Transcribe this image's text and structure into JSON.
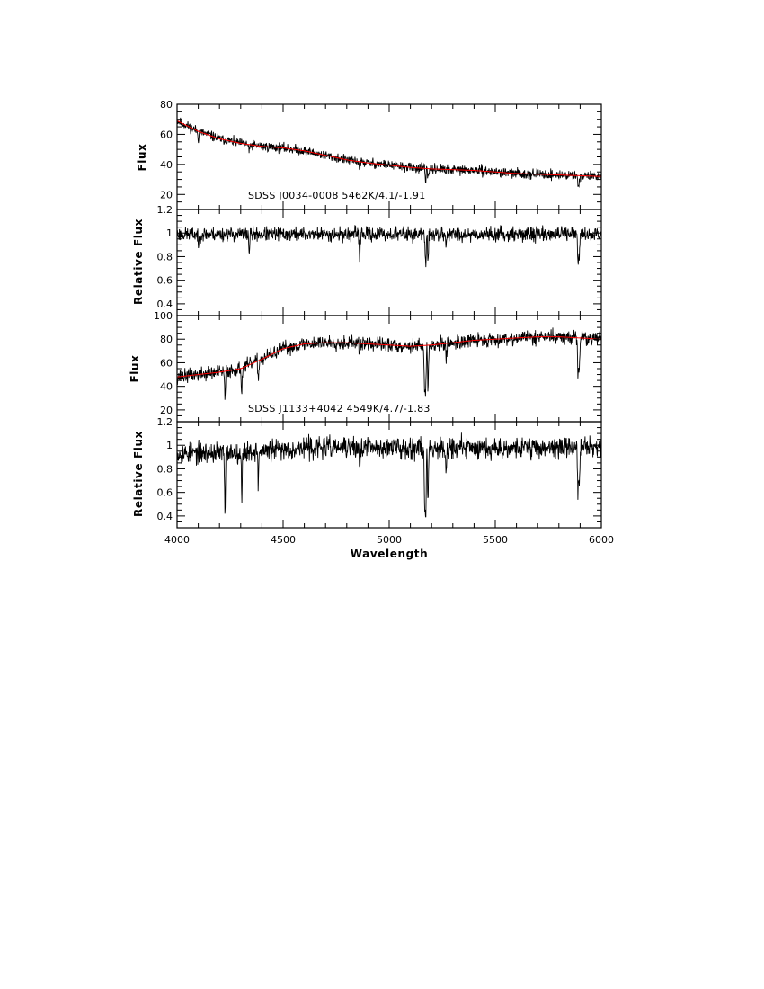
{
  "chart_data": [
    {
      "type": "line",
      "panel": "top-flux",
      "annotation": "SDSS J0034-0008 5462K/4.1/-1.91",
      "ylabel": "Flux",
      "xlabel": "",
      "xlim": [
        4000,
        6000
      ],
      "ylim": [
        10,
        80
      ],
      "yticks": [
        20,
        40,
        60,
        80
      ],
      "ytick_labels": [
        "20",
        "40",
        "60",
        "80"
      ],
      "series": [
        {
          "color": "#000000",
          "continuum": {
            "x": [
              4000,
              4100,
              4200,
              4300,
              4400,
              4500,
              4600,
              4700,
              4800,
              4900,
              5000,
              5100,
              5200,
              5300,
              5400,
              5500,
              5600,
              5700,
              5800,
              5900,
              6000
            ],
            "y": [
              69,
              62,
              57,
              54,
              52,
              51,
              49,
              46,
              43,
              41,
              39.5,
              38,
              37,
              36.5,
              36,
              35,
              34,
              33.5,
              33,
              32.5,
              32
            ]
          },
          "noise": 3.2,
          "seed": 11,
          "features": [
            {
              "x": 4861,
              "depth": 5
            },
            {
              "x": 5172,
              "depth": 9
            },
            {
              "x": 5183,
              "depth": 8
            },
            {
              "x": 5268,
              "depth": 3
            },
            {
              "x": 5890,
              "depth": 6
            },
            {
              "x": 5896,
              "depth": 5
            },
            {
              "x": 4340,
              "depth": 6
            },
            {
              "x": 4101,
              "depth": 5
            }
          ]
        },
        {
          "color": "#ff0000",
          "x": [
            4000,
            4100,
            4200,
            4300,
            4400,
            4500,
            4600,
            4700,
            4800,
            4900,
            5000,
            5100,
            5200,
            5300,
            5400,
            5500,
            5600,
            5700,
            5800,
            5900,
            6000
          ],
          "y": [
            69,
            62,
            57,
            54,
            52,
            51,
            49,
            46,
            43,
            41,
            39.5,
            38,
            37,
            36.5,
            36,
            35,
            34,
            33.5,
            33,
            32.5,
            32
          ]
        }
      ]
    },
    {
      "type": "line",
      "panel": "top-relative",
      "annotation": "",
      "ylabel": "Relative Flux",
      "xlabel": "",
      "xlim": [
        4000,
        6000
      ],
      "ylim": [
        0.3,
        1.2
      ],
      "yticks": [
        0.4,
        0.6,
        0.8,
        1,
        1.2
      ],
      "ytick_labels": [
        "0.4",
        "0.6",
        "0.8",
        "1",
        "1.2"
      ],
      "series": [
        {
          "color": "#000000",
          "continuum": {
            "x": [
              4000,
              6000
            ],
            "y": [
              0.99,
              0.99
            ]
          },
          "noise": 0.06,
          "seed": 23,
          "features": [
            {
              "x": 4861,
              "depth": 0.2
            },
            {
              "x": 5172,
              "depth": 0.28
            },
            {
              "x": 5183,
              "depth": 0.25
            },
            {
              "x": 5268,
              "depth": 0.1
            },
            {
              "x": 5890,
              "depth": 0.25
            },
            {
              "x": 5896,
              "depth": 0.2
            },
            {
              "x": 4340,
              "depth": 0.15
            },
            {
              "x": 4101,
              "depth": 0.12
            }
          ]
        }
      ]
    },
    {
      "type": "line",
      "panel": "bottom-flux",
      "annotation": "SDSS J1133+4042 4549K/4.7/-1.83",
      "ylabel": "Flux",
      "xlabel": "",
      "xlim": [
        4000,
        6000
      ],
      "ylim": [
        10,
        100
      ],
      "yticks": [
        20,
        40,
        60,
        80,
        100
      ],
      "ytick_labels": [
        "20",
        "40",
        "60",
        "80",
        "100"
      ],
      "series": [
        {
          "color": "#000000",
          "continuum": {
            "x": [
              4000,
              4100,
              4200,
              4300,
              4400,
              4500,
              4600,
              4700,
              4800,
              4900,
              5000,
              5100,
              5200,
              5300,
              5400,
              5500,
              5600,
              5700,
              5800,
              5900,
              6000
            ],
            "y": [
              48,
              50,
              52,
              55,
              63,
              72,
              76,
              77,
              77,
              76,
              75,
              74,
              75,
              77,
              79,
              80,
              81,
              82,
              82,
              81,
              80
            ]
          },
          "noise": 6,
          "seed": 37,
          "features": [
            {
              "x": 4226,
              "depth": 25
            },
            {
              "x": 4305,
              "depth": 20
            },
            {
              "x": 4383,
              "depth": 15
            },
            {
              "x": 4861,
              "depth": 12
            },
            {
              "x": 5167,
              "depth": 35
            },
            {
              "x": 5172,
              "depth": 40
            },
            {
              "x": 5183,
              "depth": 38
            },
            {
              "x": 5269,
              "depth": 15
            },
            {
              "x": 5890,
              "depth": 30
            },
            {
              "x": 5896,
              "depth": 28
            }
          ]
        },
        {
          "color": "#ff0000",
          "x": [
            4000,
            4100,
            4200,
            4300,
            4400,
            4500,
            4600,
            4700,
            4800,
            4900,
            5000,
            5100,
            5200,
            5300,
            5400,
            5500,
            5600,
            5700,
            5800,
            5900,
            6000
          ],
          "y": [
            48,
            50,
            52,
            55,
            63,
            72,
            76,
            77,
            77,
            76,
            75,
            74,
            75,
            77,
            79,
            80,
            81,
            82,
            82,
            81,
            80
          ]
        }
      ]
    },
    {
      "type": "line",
      "panel": "bottom-relative",
      "annotation": "",
      "ylabel": "Relative Flux",
      "xlabel": "Wavelength",
      "xlim": [
        4000,
        6000
      ],
      "ylim": [
        0.3,
        1.2
      ],
      "yticks": [
        0.4,
        0.6,
        0.8,
        1,
        1.2
      ],
      "ytick_labels": [
        "0.4",
        "0.6",
        "0.8",
        "1",
        "1.2"
      ],
      "xticks": [
        4000,
        4500,
        5000,
        5500,
        6000
      ],
      "xtick_labels": [
        "4000",
        "4500",
        "5000",
        "5500",
        "6000"
      ],
      "series": [
        {
          "color": "#000000",
          "continuum": {
            "x": [
              4000,
              4400,
              4600,
              6000
            ],
            "y": [
              0.93,
              0.95,
              0.98,
              0.98
            ]
          },
          "noise": 0.09,
          "seed": 53,
          "features": [
            {
              "x": 4226,
              "depth": 0.55
            },
            {
              "x": 4305,
              "depth": 0.4
            },
            {
              "x": 4383,
              "depth": 0.25
            },
            {
              "x": 4861,
              "depth": 0.2
            },
            {
              "x": 5167,
              "depth": 0.45
            },
            {
              "x": 5172,
              "depth": 0.55
            },
            {
              "x": 5183,
              "depth": 0.5
            },
            {
              "x": 5269,
              "depth": 0.2
            },
            {
              "x": 5890,
              "depth": 0.35
            },
            {
              "x": 5896,
              "depth": 0.3
            }
          ]
        }
      ]
    }
  ]
}
